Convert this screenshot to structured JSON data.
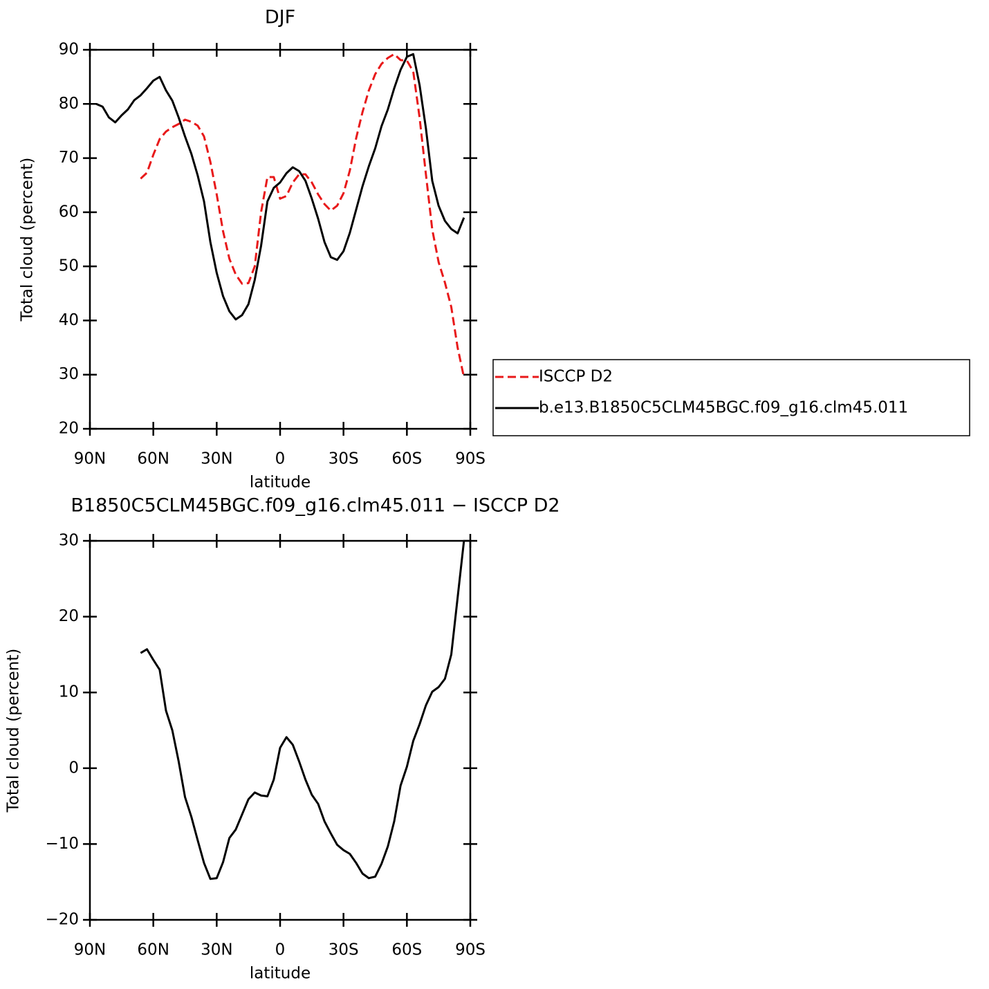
{
  "chart_data": [
    {
      "type": "line",
      "title": "DJF",
      "x_label": "latitude",
      "y_label": "Total cloud (percent)",
      "xlim": [
        90,
        -90
      ],
      "ylim": [
        20,
        90
      ],
      "xticks": [
        {
          "value": 90,
          "label": "90N"
        },
        {
          "value": 60,
          "label": "60N"
        },
        {
          "value": 30,
          "label": "30N"
        },
        0,
        {
          "value": -30,
          "label": "30S"
        },
        {
          "value": -60,
          "label": "60S"
        },
        {
          "value": -90,
          "label": "90S"
        }
      ],
      "yticks": [
        20,
        30,
        40,
        50,
        60,
        70,
        80,
        90
      ],
      "legend": "right",
      "x": [
        87,
        84,
        81,
        78,
        75,
        72,
        69,
        66,
        63,
        60,
        57,
        54,
        51,
        48,
        45,
        42,
        39,
        36,
        33,
        30,
        27,
        24,
        21,
        18,
        15,
        12,
        9,
        6,
        3,
        0,
        -3,
        -6,
        -9,
        -12,
        -15,
        -18,
        -21,
        -24,
        -27,
        -30,
        -33,
        -36,
        -39,
        -42,
        -45,
        -48,
        -51,
        -54,
        -57,
        -60,
        -63,
        -66,
        -69,
        -72,
        -75,
        -78,
        -81,
        -84,
        -87
      ],
      "series": [
        {
          "name": "ISCCP D2",
          "color": "#e8191a",
          "style": "dashed",
          "values": [
            null,
            null,
            null,
            null,
            null,
            null,
            null,
            66.2,
            67.3,
            70.6,
            73.5,
            74.9,
            75.7,
            76.3,
            77.1,
            76.7,
            76.0,
            74.0,
            69.3,
            63.3,
            56.5,
            51.4,
            48.5,
            46.8,
            46.9,
            50.0,
            60.0,
            66.5,
            66.5,
            62.5,
            63.0,
            65.5,
            67.0,
            67.0,
            65.5,
            63.3,
            61.5,
            60.3,
            61.2,
            63.5,
            67.7,
            73.7,
            78.5,
            82.5,
            85.5,
            87.4,
            88.5,
            89.2,
            88.1,
            88.0,
            86.0,
            77.5,
            67.0,
            56.8,
            50.8,
            47.0,
            42.5,
            35.0,
            29.5
          ]
        },
        {
          "name": "b.e13.B1850C5CLM45BGC.f09_g16.clm45.011",
          "color": "#000000",
          "style": "solid",
          "values": [
            80.0,
            79.5,
            77.5,
            76.6,
            77.9,
            79.0,
            80.7,
            81.6,
            82.9,
            84.3,
            85.0,
            82.5,
            80.6,
            77.5,
            74.0,
            70.8,
            66.8,
            62.0,
            54.5,
            48.8,
            44.5,
            41.7,
            40.2,
            41.0,
            43.0,
            47.5,
            53.8,
            62.0,
            64.5,
            65.5,
            67.2,
            68.3,
            67.6,
            65.8,
            62.5,
            58.8,
            54.5,
            51.7,
            51.2,
            52.8,
            56.2,
            60.5,
            64.8,
            68.5,
            71.8,
            75.9,
            79.0,
            82.9,
            86.3,
            88.7,
            89.2,
            83.5,
            75.5,
            65.8,
            61.2,
            58.4,
            56.9,
            56.1,
            59.0
          ]
        }
      ]
    },
    {
      "type": "line",
      "title": "B1850C5CLM45BGC.f09_g16.clm45.011 − ISCCP D2",
      "x_label": "latitude",
      "y_label": "Total cloud (percent)",
      "xlim": [
        90,
        -90
      ],
      "ylim": [
        -20,
        30
      ],
      "xticks": [
        {
          "value": 90,
          "label": "90N"
        },
        {
          "value": 60,
          "label": "60N"
        },
        {
          "value": 30,
          "label": "30N"
        },
        0,
        {
          "value": -30,
          "label": "30S"
        },
        {
          "value": -60,
          "label": "60S"
        },
        {
          "value": -90,
          "label": "90S"
        }
      ],
      "yticks": [
        {
          "value": -20,
          "label": "−20"
        },
        {
          "value": -10,
          "label": "−10"
        },
        0,
        10,
        20,
        30
      ],
      "x": [
        87,
        84,
        81,
        78,
        75,
        72,
        69,
        66,
        63,
        60,
        57,
        54,
        51,
        48,
        45,
        42,
        39,
        36,
        33,
        30,
        27,
        24,
        21,
        18,
        15,
        12,
        9,
        6,
        3,
        0,
        -3,
        -6,
        -9,
        -12,
        -15,
        -18,
        -21,
        -24,
        -27,
        -30,
        -33,
        -36,
        -39,
        -42,
        -45,
        -48,
        -51,
        -54,
        -57,
        -60,
        -63,
        -66,
        -69,
        -72,
        -75,
        -78,
        -81,
        -84,
        -87
      ],
      "series": [
        {
          "color": "#000000",
          "style": "solid",
          "values": [
            null,
            null,
            null,
            null,
            null,
            null,
            null,
            15.2,
            15.7,
            14.3,
            13.0,
            7.6,
            5.0,
            0.9,
            -3.8,
            -6.4,
            -9.5,
            -12.5,
            -14.6,
            -14.5,
            -12.4,
            -9.2,
            -8.1,
            -6.1,
            -4.1,
            -3.2,
            -3.6,
            -3.7,
            -1.5,
            2.7,
            4.1,
            3.1,
            0.9,
            -1.5,
            -3.5,
            -4.7,
            -7.0,
            -8.6,
            -10.1,
            -10.8,
            -11.3,
            -12.5,
            -13.9,
            -14.5,
            -14.3,
            -12.6,
            -10.3,
            -7.0,
            -2.3,
            0.2,
            3.6,
            5.8,
            8.3,
            10.1,
            10.7,
            11.8,
            15.0,
            22.5,
            30.0
          ]
        }
      ]
    }
  ]
}
